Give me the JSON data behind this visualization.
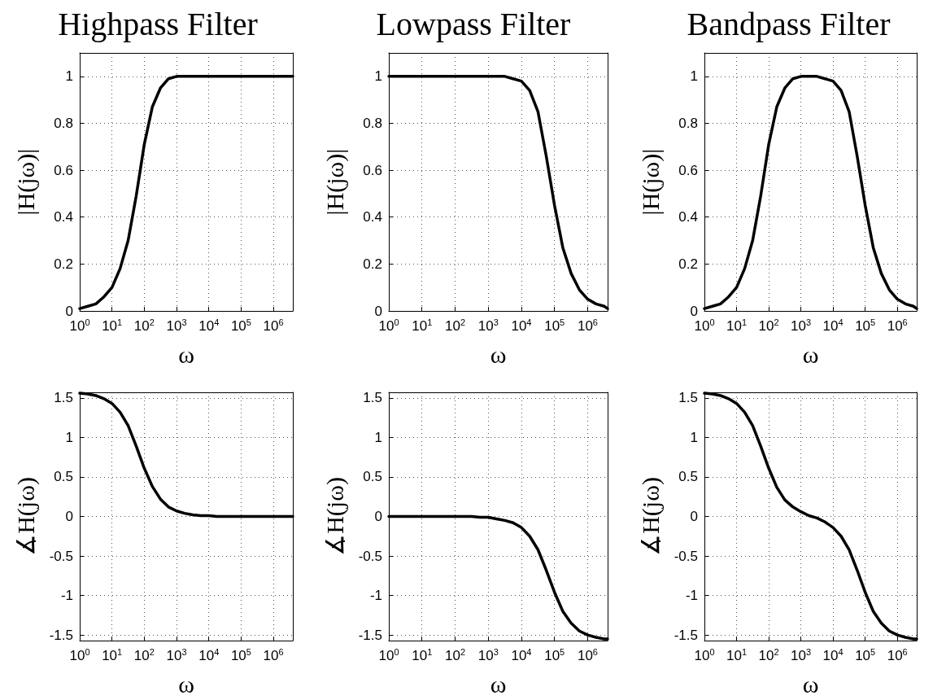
{
  "chart_data": [
    {
      "type": "line",
      "title": "Highpass Filter",
      "xlabel": "ω",
      "ylabel": "|H(jω)|",
      "log": "x",
      "grid": true,
      "marker": "none",
      "line_style": "solid",
      "xlim": [
        1,
        4000000
      ],
      "ylim": [
        0,
        1.1
      ],
      "yticks": [
        0,
        0.2,
        0.4,
        0.6,
        0.8,
        1
      ],
      "xticks": [
        {
          "value": 1,
          "label": "10$^{0}$"
        },
        {
          "value": 10,
          "label": "10$^{1}$"
        },
        {
          "value": 100,
          "label": "10$^{2}$"
        },
        {
          "value": 1000,
          "label": "10$^{3}$"
        },
        {
          "value": 10000,
          "label": "10$^{4}$"
        },
        {
          "value": 100000,
          "label": "10$^{5}$"
        },
        {
          "value": 1000000,
          "label": "10$^{6}$"
        }
      ],
      "x": [
        1,
        1.778,
        3.162,
        5.623,
        10,
        17.78,
        31.62,
        56.23,
        100,
        177.8,
        316.2,
        562.3,
        1000,
        1778,
        3162,
        5623,
        10000,
        17783,
        31623,
        56234,
        100000,
        177828,
        316228,
        562341,
        1000000,
        1778279,
        3162278,
        4000000
      ],
      "series": [
        {
          "color": "#000000",
          "values": [
            0.01,
            0.02,
            0.03,
            0.06,
            0.1,
            0.18,
            0.3,
            0.49,
            0.71,
            0.87,
            0.95,
            0.99,
            1,
            1,
            1,
            1,
            1,
            1,
            1,
            1,
            1,
            1,
            1,
            1,
            1,
            1,
            1,
            1
          ]
        }
      ]
    },
    {
      "type": "line",
      "title": "Lowpass Filter",
      "xlabel": "ω",
      "ylabel": "|H(jω)|",
      "log": "x",
      "grid": true,
      "marker": "none",
      "line_style": "solid",
      "xlim": [
        1,
        4000000
      ],
      "ylim": [
        0,
        1.1
      ],
      "yticks": [
        0,
        0.2,
        0.4,
        0.6,
        0.8,
        1
      ],
      "xticks": [
        {
          "value": 1,
          "label": "10$^{0}$"
        },
        {
          "value": 10,
          "label": "10$^{1}$"
        },
        {
          "value": 100,
          "label": "10$^{2}$"
        },
        {
          "value": 1000,
          "label": "10$^{3}$"
        },
        {
          "value": 10000,
          "label": "10$^{4}$"
        },
        {
          "value": 100000,
          "label": "10$^{5}$"
        },
        {
          "value": 1000000,
          "label": "10$^{6}$"
        }
      ],
      "x": [
        1,
        1.778,
        3.162,
        5.623,
        10,
        17.78,
        31.62,
        56.23,
        100,
        177.8,
        316.2,
        562.3,
        1000,
        1778,
        3162,
        5623,
        10000,
        17783,
        31623,
        56234,
        100000,
        177828,
        316228,
        562341,
        1000000,
        1778279,
        3162278,
        4000000
      ],
      "series": [
        {
          "color": "#000000",
          "values": [
            1,
            1,
            1,
            1,
            1,
            1,
            1,
            1,
            1,
            1,
            1,
            1,
            1,
            1,
            1,
            0.99,
            0.98,
            0.94,
            0.85,
            0.66,
            0.45,
            0.27,
            0.16,
            0.09,
            0.05,
            0.03,
            0.02,
            0.01
          ]
        }
      ]
    },
    {
      "type": "line",
      "title": "Bandpass Filter",
      "xlabel": "ω",
      "ylabel": "|H(jω)|",
      "log": "x",
      "grid": true,
      "marker": "none",
      "line_style": "solid",
      "xlim": [
        1,
        4000000
      ],
      "ylim": [
        0,
        1.1
      ],
      "yticks": [
        0,
        0.2,
        0.4,
        0.6,
        0.8,
        1
      ],
      "xticks": [
        {
          "value": 1,
          "label": "10$^{0}$"
        },
        {
          "value": 10,
          "label": "10$^{1}$"
        },
        {
          "value": 100,
          "label": "10$^{2}$"
        },
        {
          "value": 1000,
          "label": "10$^{3}$"
        },
        {
          "value": 10000,
          "label": "10$^{4}$"
        },
        {
          "value": 100000,
          "label": "10$^{5}$"
        },
        {
          "value": 1000000,
          "label": "10$^{6}$"
        }
      ],
      "x": [
        1,
        1.778,
        3.162,
        5.623,
        10,
        17.78,
        31.62,
        56.23,
        100,
        177.8,
        316.2,
        562.3,
        1000,
        1778,
        3162,
        5623,
        10000,
        17783,
        31623,
        56234,
        100000,
        177828,
        316228,
        562341,
        1000000,
        1778279,
        3162278,
        4000000
      ],
      "series": [
        {
          "color": "#000000",
          "values": [
            0.01,
            0.02,
            0.03,
            0.06,
            0.1,
            0.18,
            0.3,
            0.49,
            0.71,
            0.87,
            0.95,
            0.99,
            1,
            1,
            1,
            0.99,
            0.98,
            0.94,
            0.85,
            0.66,
            0.45,
            0.27,
            0.16,
            0.09,
            0.05,
            0.03,
            0.02,
            0.01
          ]
        }
      ]
    },
    {
      "type": "line",
      "xlabel": "ω",
      "ylabel": "∡H(jω)",
      "log": "x",
      "grid": true,
      "marker": "none",
      "line_style": "solid",
      "xlim": [
        1,
        4000000
      ],
      "ylim": [
        -1.5708,
        1.5708
      ],
      "yticks": [
        -1.5,
        -1,
        -0.5,
        0,
        0.5,
        1,
        1.5
      ],
      "xticks": [
        {
          "value": 1,
          "label": "10$^{0}$"
        },
        {
          "value": 10,
          "label": "10$^{1}$"
        },
        {
          "value": 100,
          "label": "10$^{2}$"
        },
        {
          "value": 1000,
          "label": "10$^{3}$"
        },
        {
          "value": 10000,
          "label": "10$^{4}$"
        },
        {
          "value": 100000,
          "label": "10$^{5}$"
        },
        {
          "value": 1000000,
          "label": "10$^{6}$"
        }
      ],
      "x": [
        1,
        1.778,
        3.162,
        5.623,
        10,
        17.78,
        31.62,
        56.23,
        100,
        177.8,
        316.2,
        562.3,
        1000,
        1778,
        3162,
        5623,
        10000,
        17783,
        31623,
        56234,
        100000,
        177828,
        316228,
        562341,
        1000000,
        1778279,
        3162278,
        4000000
      ],
      "series": [
        {
          "color": "#000000",
          "values": [
            1.56,
            1.55,
            1.53,
            1.49,
            1.43,
            1.32,
            1.15,
            0.89,
            0.61,
            0.38,
            0.22,
            0.12,
            0.07,
            0.04,
            0.02,
            0.01,
            0.01,
            0,
            0,
            0,
            0,
            0,
            0,
            0,
            0,
            0,
            0,
            0
          ]
        }
      ]
    },
    {
      "type": "line",
      "xlabel": "ω",
      "ylabel": "∡H(jω)",
      "log": "x",
      "grid": true,
      "marker": "none",
      "line_style": "solid",
      "xlim": [
        1,
        4000000
      ],
      "ylim": [
        -1.5708,
        1.5708
      ],
      "yticks": [
        -1.5,
        -1,
        -0.5,
        0,
        0.5,
        1,
        1.5
      ],
      "xticks": [
        {
          "value": 1,
          "label": "10$^{0}$"
        },
        {
          "value": 10,
          "label": "10$^{1}$"
        },
        {
          "value": 100,
          "label": "10$^{2}$"
        },
        {
          "value": 1000,
          "label": "10$^{3}$"
        },
        {
          "value": 10000,
          "label": "10$^{4}$"
        },
        {
          "value": 100000,
          "label": "10$^{5}$"
        },
        {
          "value": 1000000,
          "label": "10$^{6}$"
        }
      ],
      "x": [
        1,
        1.778,
        3.162,
        5.623,
        10,
        17.78,
        31.62,
        56.23,
        100,
        177.8,
        316.2,
        562.3,
        1000,
        1778,
        3162,
        5623,
        10000,
        17783,
        31623,
        56234,
        100000,
        177828,
        316228,
        562341,
        1000000,
        1778279,
        3162278,
        4000000
      ],
      "series": [
        {
          "color": "#000000",
          "values": [
            0,
            0,
            0,
            0,
            0,
            0,
            0,
            0,
            0,
            0,
            0,
            -0.01,
            -0.01,
            -0.03,
            -0.05,
            -0.08,
            -0.14,
            -0.25,
            -0.42,
            -0.68,
            -0.96,
            -1.2,
            -1.35,
            -1.45,
            -1.5,
            -1.53,
            -1.55,
            -1.55
          ]
        }
      ]
    },
    {
      "type": "line",
      "xlabel": "ω",
      "ylabel": "∡H(jω)",
      "log": "x",
      "grid": true,
      "marker": "none",
      "line_style": "solid",
      "xlim": [
        1,
        4000000
      ],
      "ylim": [
        -1.5708,
        1.5708
      ],
      "yticks": [
        -1.5,
        -1,
        -0.5,
        0,
        0.5,
        1,
        1.5
      ],
      "xticks": [
        {
          "value": 1,
          "label": "10$^{0}$"
        },
        {
          "value": 10,
          "label": "10$^{1}$"
        },
        {
          "value": 100,
          "label": "10$^{2}$"
        },
        {
          "value": 1000,
          "label": "10$^{3}$"
        },
        {
          "value": 10000,
          "label": "10$^{4}$"
        },
        {
          "value": 100000,
          "label": "10$^{5}$"
        },
        {
          "value": 1000000,
          "label": "10$^{6}$"
        }
      ],
      "x": [
        1,
        1.778,
        3.162,
        5.623,
        10,
        17.78,
        31.62,
        56.23,
        100,
        177.8,
        316.2,
        562.3,
        1000,
        1778,
        3162,
        5623,
        10000,
        17783,
        31623,
        56234,
        100000,
        177828,
        316228,
        562341,
        1000000,
        1778279,
        3162278,
        4000000
      ],
      "series": [
        {
          "color": "#000000",
          "values": [
            1.56,
            1.55,
            1.53,
            1.49,
            1.43,
            1.32,
            1.15,
            0.89,
            0.61,
            0.37,
            0.21,
            0.12,
            0.06,
            0.01,
            -0.02,
            -0.07,
            -0.14,
            -0.25,
            -0.42,
            -0.68,
            -0.96,
            -1.2,
            -1.35,
            -1.45,
            -1.5,
            -1.53,
            -1.55,
            -1.55
          ]
        }
      ]
    }
  ]
}
